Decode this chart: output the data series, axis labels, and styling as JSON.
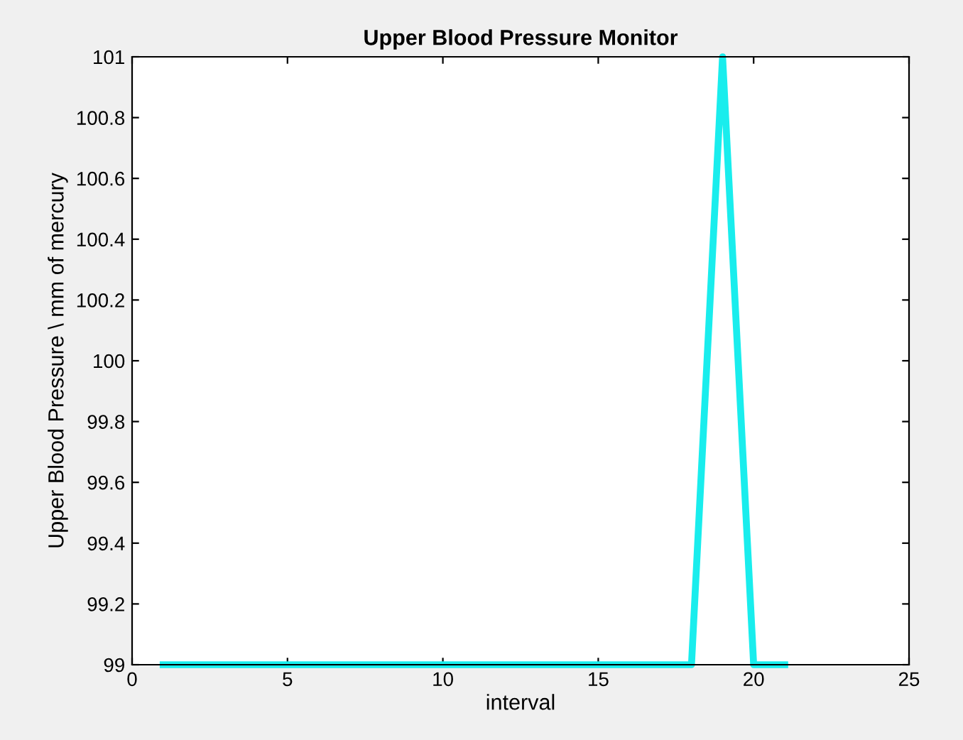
{
  "chart_data": {
    "type": "line",
    "title": "Upper Blood Pressure Monitor",
    "xlabel": "interval",
    "ylabel": "Upper Blood Pressure \\ mm of mercury",
    "x": [
      1,
      2,
      3,
      4,
      5,
      6,
      7,
      8,
      9,
      10,
      11,
      12,
      13,
      14,
      15,
      16,
      17,
      18,
      19,
      20,
      21
    ],
    "series": [
      {
        "color": "#19eded",
        "values": [
          99,
          99,
          99,
          99,
          99,
          99,
          99,
          99,
          99,
          99,
          99,
          99,
          99,
          99,
          99,
          99,
          99,
          99,
          101,
          99,
          99
        ]
      }
    ],
    "xlim": [
      0,
      25
    ],
    "xticks": [
      0,
      5,
      10,
      15,
      20,
      25
    ],
    "ylim": [
      99,
      101
    ],
    "yticks": [
      99,
      99.2,
      99.4,
      99.6,
      99.8,
      100,
      100.2,
      100.4,
      100.6,
      100.8,
      101
    ],
    "grid": false,
    "legend": false,
    "marker": "none",
    "line_style": "solid"
  }
}
